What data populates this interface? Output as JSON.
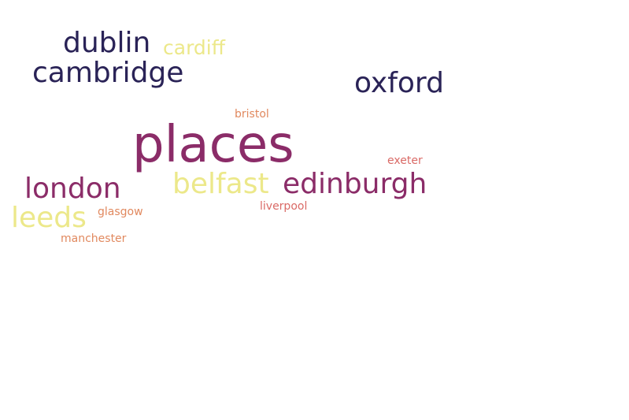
{
  "cloud": {
    "words": [
      {
        "text": "places",
        "weight": 64,
        "color": "#8b2c68"
      },
      {
        "text": "dublin",
        "weight": 36,
        "color": "#2a2357"
      },
      {
        "text": "cardiff",
        "weight": 25,
        "color": "#ece88a"
      },
      {
        "text": "cambridge",
        "weight": 36,
        "color": "#2a2357"
      },
      {
        "text": "oxford",
        "weight": 36,
        "color": "#2a2357"
      },
      {
        "text": "bristol",
        "weight": 14,
        "color": "#e1895f"
      },
      {
        "text": "exeter",
        "weight": 14,
        "color": "#da6a66"
      },
      {
        "text": "london",
        "weight": 36,
        "color": "#8b2c68"
      },
      {
        "text": "belfast",
        "weight": 36,
        "color": "#ece88a"
      },
      {
        "text": "edinburgh",
        "weight": 36,
        "color": "#8b2c68"
      },
      {
        "text": "liverpool",
        "weight": 14,
        "color": "#da6a66"
      },
      {
        "text": "glasgow",
        "weight": 14,
        "color": "#e1895f"
      },
      {
        "text": "leeds",
        "weight": 36,
        "color": "#ece88a"
      },
      {
        "text": "manchester",
        "weight": 14,
        "color": "#e1895f"
      }
    ]
  }
}
